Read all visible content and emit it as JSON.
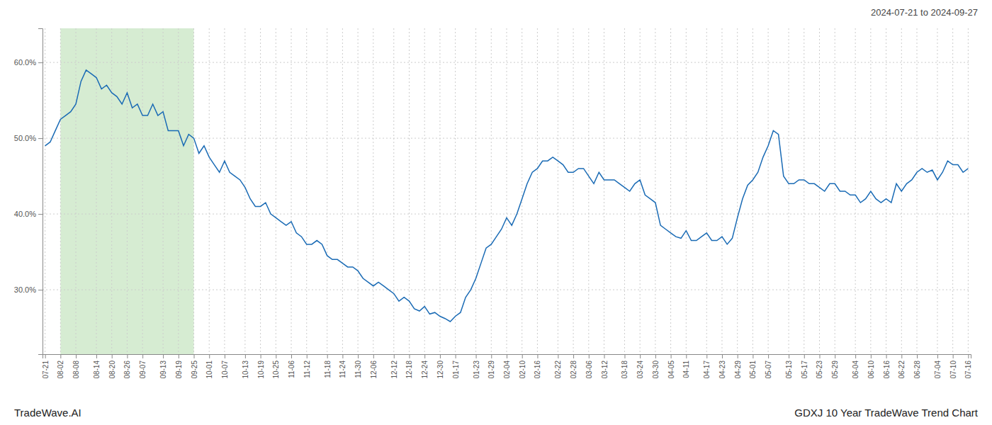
{
  "chart_data": {
    "type": "line",
    "title": "2024-07-21 to 2024-09-27",
    "annotations": [
      "TradeWave.AI",
      "GDXJ 10 Year TradeWave Trend Chart"
    ],
    "color": "#1a6bb5",
    "grid": true,
    "shaded": {
      "from": "08-02",
      "to": "09-25",
      "color": "#d6ecd2"
    },
    "ylim": [
      0.215,
      0.645
    ],
    "yticks": [
      {
        "value": 0.3,
        "label": "30.0%"
      },
      {
        "value": 0.4,
        "label": "40.0%"
      },
      {
        "value": 0.5,
        "label": "50.0%"
      },
      {
        "value": 0.6,
        "label": "60.0%"
      }
    ],
    "categories": [
      "07-21",
      null,
      null,
      "08-02",
      null,
      null,
      "08-08",
      null,
      null,
      null,
      "08-14",
      null,
      null,
      "08-20",
      null,
      null,
      "08-26",
      null,
      null,
      "09-07",
      null,
      null,
      null,
      "09-13",
      null,
      null,
      "09-19",
      null,
      null,
      "09-25",
      null,
      null,
      "10-01",
      null,
      null,
      "10-07",
      null,
      null,
      null,
      "10-13",
      null,
      null,
      "10-19",
      null,
      null,
      "10-25",
      null,
      null,
      "11-06",
      null,
      null,
      "11-12",
      null,
      null,
      null,
      "11-18",
      null,
      null,
      "11-24",
      null,
      null,
      "11-30",
      null,
      null,
      "12-06",
      null,
      null,
      null,
      "12-12",
      null,
      null,
      "12-18",
      null,
      null,
      "12-24",
      null,
      null,
      "12-30",
      null,
      null,
      "01-17",
      null,
      null,
      null,
      "01-23",
      null,
      null,
      "01-29",
      null,
      null,
      "02-04",
      null,
      null,
      "02-10",
      null,
      null,
      "02-16",
      null,
      null,
      null,
      "02-22",
      null,
      null,
      "02-28",
      null,
      null,
      "03-06",
      null,
      null,
      "03-12",
      null,
      null,
      null,
      "03-18",
      null,
      null,
      "03-24",
      null,
      null,
      "03-30",
      null,
      null,
      "04-05",
      null,
      null,
      "04-11",
      null,
      null,
      null,
      "04-17",
      null,
      null,
      "04-23",
      null,
      null,
      "04-29",
      null,
      null,
      "05-01",
      null,
      null,
      "05-07",
      null,
      null,
      null,
      "05-13",
      null,
      null,
      "05-17",
      null,
      null,
      "05-23",
      null,
      null,
      "05-29",
      null,
      null,
      null,
      "06-04",
      null,
      null,
      "06-10",
      null,
      null,
      "06-16",
      null,
      null,
      "06-22",
      null,
      null,
      "06-28",
      null,
      null,
      null,
      "07-04",
      null,
      null,
      "07-10",
      null,
      null,
      "07-16"
    ],
    "values": [
      0.49,
      0.495,
      0.51,
      0.525,
      0.53,
      0.535,
      0.545,
      0.575,
      0.59,
      0.585,
      0.58,
      0.565,
      0.57,
      0.56,
      0.555,
      0.545,
      0.56,
      0.54,
      0.545,
      0.53,
      0.53,
      0.545,
      0.53,
      0.535,
      0.51,
      0.51,
      0.51,
      0.49,
      0.505,
      0.5,
      0.48,
      0.49,
      0.475,
      0.465,
      0.455,
      0.47,
      0.455,
      0.45,
      0.445,
      0.435,
      0.42,
      0.41,
      0.41,
      0.415,
      0.4,
      0.395,
      0.39,
      0.385,
      0.39,
      0.375,
      0.37,
      0.36,
      0.36,
      0.365,
      0.36,
      0.345,
      0.34,
      0.34,
      0.335,
      0.33,
      0.33,
      0.325,
      0.315,
      0.31,
      0.305,
      0.31,
      0.305,
      0.3,
      0.295,
      0.285,
      0.29,
      0.285,
      0.275,
      0.272,
      0.278,
      0.268,
      0.27,
      0.265,
      0.262,
      0.258,
      0.265,
      0.27,
      0.29,
      0.3,
      0.315,
      0.335,
      0.355,
      0.36,
      0.37,
      0.38,
      0.395,
      0.385,
      0.4,
      0.42,
      0.44,
      0.455,
      0.46,
      0.47,
      0.47,
      0.475,
      0.47,
      0.465,
      0.455,
      0.455,
      0.46,
      0.46,
      0.45,
      0.44,
      0.455,
      0.445,
      0.445,
      0.445,
      0.44,
      0.435,
      0.43,
      0.44,
      0.445,
      0.425,
      0.42,
      0.415,
      0.385,
      0.38,
      0.375,
      0.37,
      0.368,
      0.378,
      0.365,
      0.365,
      0.37,
      0.375,
      0.365,
      0.365,
      0.37,
      0.36,
      0.368,
      0.395,
      0.42,
      0.438,
      0.445,
      0.455,
      0.475,
      0.49,
      0.51,
      0.505,
      0.45,
      0.44,
      0.44,
      0.445,
      0.445,
      0.44,
      0.44,
      0.435,
      0.43,
      0.44,
      0.44,
      0.43,
      0.43,
      0.425,
      0.425,
      0.415,
      0.42,
      0.43,
      0.42,
      0.415,
      0.42,
      0.415,
      0.44,
      0.43,
      0.44,
      0.445,
      0.455,
      0.46,
      0.455,
      0.458,
      0.445,
      0.455,
      0.47,
      0.465,
      0.465,
      0.455,
      0.46
    ]
  }
}
